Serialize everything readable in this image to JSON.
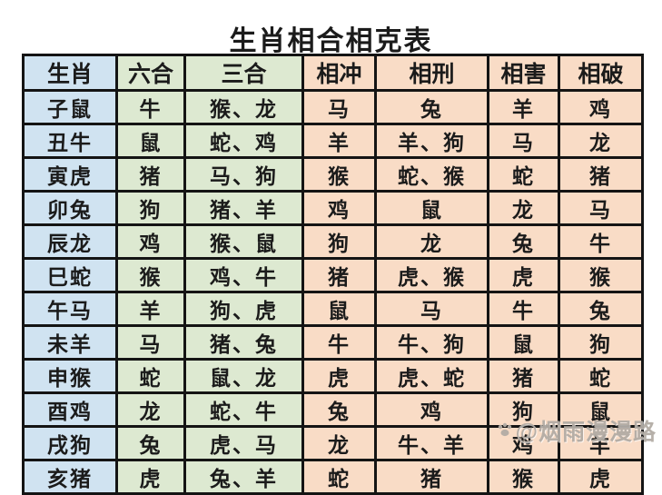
{
  "title": "生肖相合相克表",
  "table": {
    "headers": [
      "生肖",
      "六合",
      "三合",
      "相冲",
      "相刑",
      "相害",
      "相破"
    ],
    "rows": [
      [
        "子鼠",
        "牛",
        "猴、龙",
        "马",
        "兔",
        "羊",
        "鸡"
      ],
      [
        "丑牛",
        "鼠",
        "蛇、鸡",
        "羊",
        "羊、狗",
        "马",
        "龙"
      ],
      [
        "寅虎",
        "猪",
        "马、狗",
        "猴",
        "蛇、猴",
        "蛇",
        "猪"
      ],
      [
        "卯兔",
        "狗",
        "猪、羊",
        "鸡",
        "鼠",
        "龙",
        "马"
      ],
      [
        "辰龙",
        "鸡",
        "猴、鼠",
        "狗",
        "龙",
        "兔",
        "牛"
      ],
      [
        "巳蛇",
        "猴",
        "鸡、牛",
        "猪",
        "虎、猴",
        "虎",
        "猴"
      ],
      [
        "午马",
        "羊",
        "狗、虎",
        "鼠",
        "马",
        "牛",
        "兔"
      ],
      [
        "未羊",
        "马",
        "猪、兔",
        "牛",
        "牛、狗",
        "鼠",
        "狗"
      ],
      [
        "申猴",
        "蛇",
        "鼠、龙",
        "虎",
        "虎、蛇",
        "猪",
        "蛇"
      ],
      [
        "酉鸡",
        "龙",
        "蛇、牛",
        "兔",
        "鸡",
        "狗",
        "鼠"
      ],
      [
        "戌狗",
        "兔",
        "虎、马",
        "龙",
        "牛、羊",
        "鸡",
        "羊"
      ],
      [
        "亥猪",
        "虎",
        "兔、羊",
        "蛇",
        "猪",
        "猴",
        "虎"
      ]
    ]
  },
  "watermark": {
    "label": "@烟雨漫漫路",
    "icon": "paw-icon"
  },
  "colors": {
    "zodiac_col": "#d0e3f1",
    "harmony_col": "#dde9d1",
    "clash_col": "#f9dcc6",
    "border": "#141414",
    "text": "#1b1b1b",
    "watermark": "#b3aca5"
  }
}
